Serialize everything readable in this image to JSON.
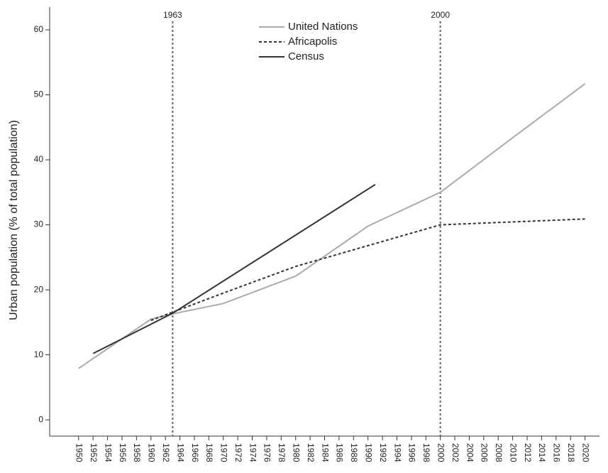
{
  "chart_data": {
    "type": "line",
    "ylabel": "Urban population (% of total population)",
    "xlim": [
      1946,
      2022
    ],
    "ylim": [
      -2.5,
      63.5
    ],
    "xticks": [
      1950,
      1952,
      1954,
      1956,
      1958,
      1960,
      1962,
      1964,
      1966,
      1968,
      1970,
      1972,
      1974,
      1976,
      1978,
      1980,
      1982,
      1984,
      1986,
      1988,
      1990,
      1992,
      1994,
      1996,
      1998,
      2000,
      2002,
      2004,
      2006,
      2008,
      2010,
      2012,
      2014,
      2016,
      2018,
      2020
    ],
    "yticks": [
      0,
      10,
      20,
      30,
      40,
      50,
      60
    ],
    "annotations": [
      {
        "x": 1963
      },
      {
        "x": 2000
      }
    ],
    "legend": "top",
    "series": [
      {
        "name": "United Nations",
        "color": "#aaaaaa",
        "dash": false,
        "x": [
          1950,
          1960,
          1963,
          1970,
          1980,
          1990,
          2000,
          2010,
          2020
        ],
        "values": [
          7.9,
          15.5,
          16.3,
          17.9,
          22.1,
          29.8,
          35.0,
          43.4,
          51.7
        ]
      },
      {
        "name": "Africapolis",
        "color": "#333333",
        "dash": true,
        "x": [
          1960,
          1970,
          1980,
          1990,
          2000,
          2020
        ],
        "values": [
          15.3,
          19.5,
          23.6,
          26.8,
          30.0,
          30.9
        ]
      },
      {
        "name": "Census",
        "color": "#333333",
        "dash": false,
        "x": [
          1952,
          1963,
          1991
        ],
        "values": [
          10.2,
          16.4,
          36.2
        ]
      }
    ]
  }
}
